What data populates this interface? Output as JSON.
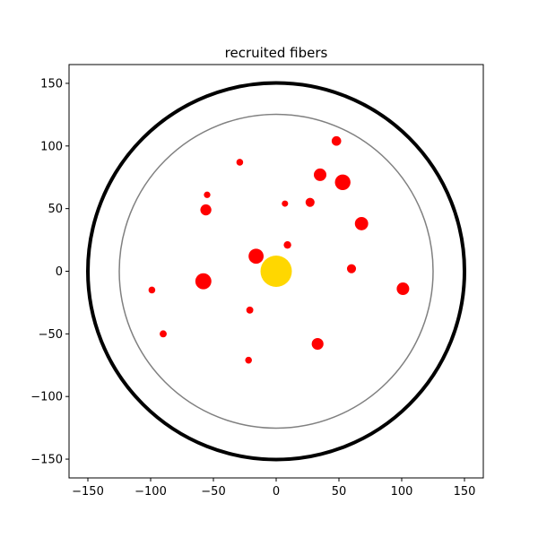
{
  "chart_data": {
    "type": "scatter",
    "title": "recruited fibers",
    "xlabel": "",
    "ylabel": "",
    "xlim": [
      -165,
      165
    ],
    "ylim": [
      -165,
      165
    ],
    "xticks": [
      -150,
      -100,
      -50,
      0,
      50,
      100,
      150
    ],
    "yticks": [
      -150,
      -100,
      -50,
      0,
      50,
      100,
      150
    ],
    "grid": false,
    "circles": [
      {
        "role": "outer-boundary",
        "cx": 0,
        "cy": 0,
        "r": 150,
        "color": "#000000",
        "linewidth": 4
      },
      {
        "role": "inner-boundary",
        "cx": 0,
        "cy": 0,
        "r": 125,
        "color": "#808080",
        "linewidth": 1.5
      }
    ],
    "points": [
      {
        "x": 0,
        "y": 0,
        "r": 12.5,
        "color": "#FFD700"
      },
      {
        "x": 48,
        "y": 104,
        "r": 3.8,
        "color": "#FF0000"
      },
      {
        "x": -29,
        "y": 87,
        "r": 2.7,
        "color": "#FF0000"
      },
      {
        "x": 35,
        "y": 77,
        "r": 5.0,
        "color": "#FF0000"
      },
      {
        "x": 53,
        "y": 71,
        "r": 6.2,
        "color": "#FF0000"
      },
      {
        "x": -55,
        "y": 61,
        "r": 2.6,
        "color": "#FF0000"
      },
      {
        "x": 7,
        "y": 54,
        "r": 2.5,
        "color": "#FF0000"
      },
      {
        "x": 27,
        "y": 55,
        "r": 3.6,
        "color": "#FF0000"
      },
      {
        "x": -56,
        "y": 49,
        "r": 4.4,
        "color": "#FF0000"
      },
      {
        "x": 68,
        "y": 38,
        "r": 5.3,
        "color": "#FF0000"
      },
      {
        "x": 9,
        "y": 21,
        "r": 3.0,
        "color": "#FF0000"
      },
      {
        "x": -16,
        "y": 12,
        "r": 6.0,
        "color": "#FF0000"
      },
      {
        "x": 60,
        "y": 2,
        "r": 3.6,
        "color": "#FF0000"
      },
      {
        "x": -58,
        "y": -8,
        "r": 6.4,
        "color": "#FF0000"
      },
      {
        "x": 101,
        "y": -14,
        "r": 5.0,
        "color": "#FF0000"
      },
      {
        "x": -99,
        "y": -15,
        "r": 2.7,
        "color": "#FF0000"
      },
      {
        "x": -21,
        "y": -31,
        "r": 2.8,
        "color": "#FF0000"
      },
      {
        "x": -90,
        "y": -50,
        "r": 2.8,
        "color": "#FF0000"
      },
      {
        "x": 33,
        "y": -58,
        "r": 4.7,
        "color": "#FF0000"
      },
      {
        "x": -22,
        "y": -71,
        "r": 2.7,
        "color": "#FF0000"
      }
    ]
  }
}
